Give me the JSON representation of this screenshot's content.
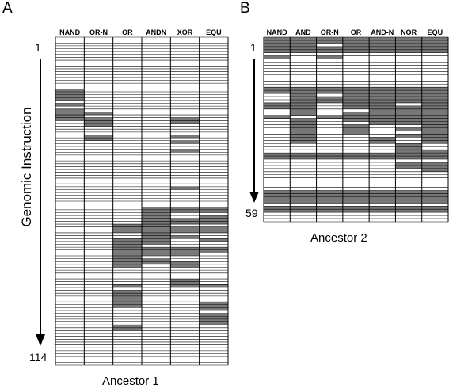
{
  "panels": [
    {
      "letter": "A",
      "columns": [
        "NAND",
        "OR-N",
        "OR",
        "ANDN",
        "XOR",
        "EQU"
      ],
      "row_start_label": "1",
      "row_end_label": "114",
      "n_rows": 114,
      "caption": "Ancestor 1",
      "y_title": "Genomic Instruction",
      "gray_cells": [
        [
          [
            18,
            21
          ],
          [
            23,
            23
          ],
          [
            25,
            28
          ]
        ],
        [
          [
            26,
            26
          ],
          [
            28,
            30
          ],
          [
            34,
            35
          ]
        ],
        [
          [
            65,
            67
          ],
          [
            70,
            79
          ],
          [
            86,
            86
          ],
          [
            88,
            93
          ],
          [
            100,
            101
          ]
        ],
        [
          [
            59,
            71
          ],
          [
            73,
            75
          ],
          [
            77,
            78
          ]
        ],
        [
          [
            28,
            29
          ],
          [
            34,
            34
          ],
          [
            36,
            36
          ],
          [
            39,
            39
          ],
          [
            52,
            52
          ],
          [
            59,
            60
          ],
          [
            63,
            64
          ],
          [
            66,
            67
          ],
          [
            69,
            69
          ],
          [
            73,
            75
          ],
          [
            78,
            79
          ],
          [
            84,
            86
          ]
        ],
        [
          [
            59,
            60
          ],
          [
            62,
            64
          ],
          [
            66,
            67
          ],
          [
            70,
            70
          ],
          [
            73,
            74
          ],
          [
            86,
            86
          ],
          [
            92,
            94
          ],
          [
            96,
            99
          ]
        ]
      ]
    },
    {
      "letter": "B",
      "columns": [
        "NAND",
        "AND",
        "OR-N",
        "OR",
        "AND-N",
        "NOR",
        "EQU"
      ],
      "row_start_label": "1",
      "row_end_label": "59",
      "n_rows": 59,
      "caption": "Ancestor 2",
      "gray_cells": [
        [
          [
            0,
            4
          ],
          [
            6,
            6
          ],
          [
            16,
            17
          ],
          [
            21,
            22
          ],
          [
            25,
            25
          ],
          [
            37,
            38
          ],
          [
            49,
            52
          ],
          [
            54,
            55
          ]
        ],
        [
          [
            0,
            4
          ],
          [
            16,
            24
          ],
          [
            26,
            33
          ],
          [
            37,
            38
          ],
          [
            49,
            52
          ],
          [
            54,
            55
          ]
        ],
        [
          [
            0,
            1
          ],
          [
            3,
            4
          ],
          [
            6,
            6
          ],
          [
            16,
            17
          ],
          [
            19,
            20
          ],
          [
            25,
            25
          ],
          [
            37,
            38
          ],
          [
            49,
            52
          ],
          [
            54,
            55
          ]
        ],
        [
          [
            0,
            4
          ],
          [
            16,
            22
          ],
          [
            24,
            26
          ],
          [
            28,
            30
          ],
          [
            37,
            38
          ],
          [
            49,
            52
          ],
          [
            54,
            55
          ]
        ],
        [
          [
            0,
            4
          ],
          [
            16,
            27
          ],
          [
            32,
            33
          ],
          [
            37,
            38
          ],
          [
            49,
            52
          ],
          [
            54,
            55
          ]
        ],
        [
          [
            0,
            4
          ],
          [
            16,
            20
          ],
          [
            22,
            27
          ],
          [
            29,
            29
          ],
          [
            31,
            31
          ],
          [
            34,
            38
          ],
          [
            40,
            41
          ],
          [
            49,
            52
          ],
          [
            54,
            55
          ]
        ],
        [
          [
            0,
            4
          ],
          [
            16,
            33
          ],
          [
            36,
            38
          ],
          [
            40,
            42
          ],
          [
            49,
            52
          ],
          [
            54,
            55
          ]
        ]
      ]
    }
  ]
}
